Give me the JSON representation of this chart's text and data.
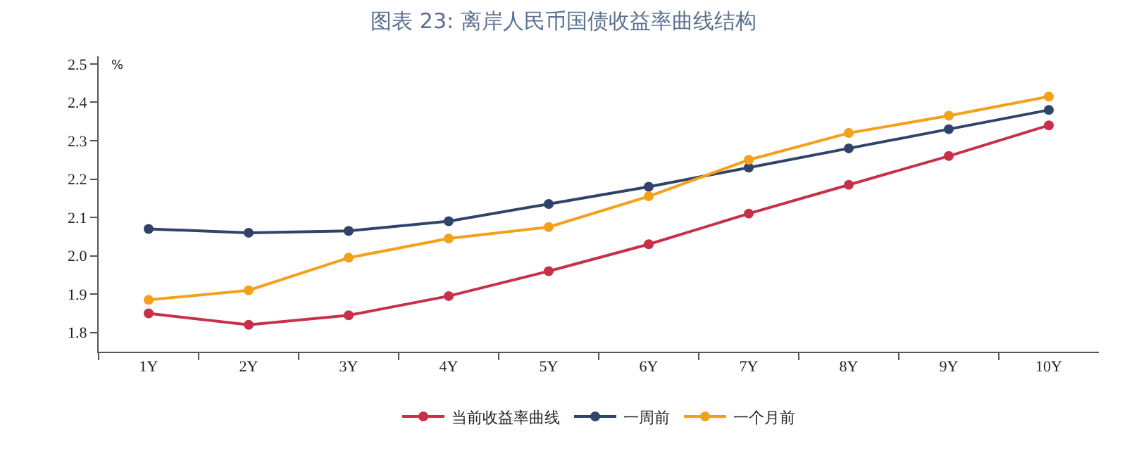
{
  "chart_data": {
    "type": "line",
    "title": "图表 23: 离岸人民币国债收益率曲线结构",
    "ylabel": "%",
    "categories": [
      "1Y",
      "2Y",
      "3Y",
      "4Y",
      "5Y",
      "6Y",
      "7Y",
      "8Y",
      "9Y",
      "10Y"
    ],
    "series": [
      {
        "name": "当前收益率曲线",
        "color": "#c8304a",
        "values": [
          1.85,
          1.82,
          1.845,
          1.895,
          1.96,
          2.03,
          2.11,
          2.185,
          2.26,
          2.34
        ]
      },
      {
        "name": "一周前",
        "color": "#2f4468",
        "values": [
          2.07,
          2.06,
          2.065,
          2.09,
          2.135,
          2.18,
          2.23,
          2.28,
          2.33,
          2.38
        ]
      },
      {
        "name": "一个月前",
        "color": "#f5a01a",
        "values": [
          1.885,
          1.91,
          1.995,
          2.045,
          2.075,
          2.155,
          2.25,
          2.32,
          2.365,
          2.415
        ]
      }
    ],
    "ylim": [
      1.75,
      2.52
    ],
    "yticks": [
      1.8,
      1.9,
      {
        "value": 2.0,
        "label": "2.0"
      },
      2.1,
      2.2,
      2.3,
      2.4,
      2.5
    ],
    "legend": "bottom",
    "marker": "circle",
    "line_style": "solid"
  }
}
